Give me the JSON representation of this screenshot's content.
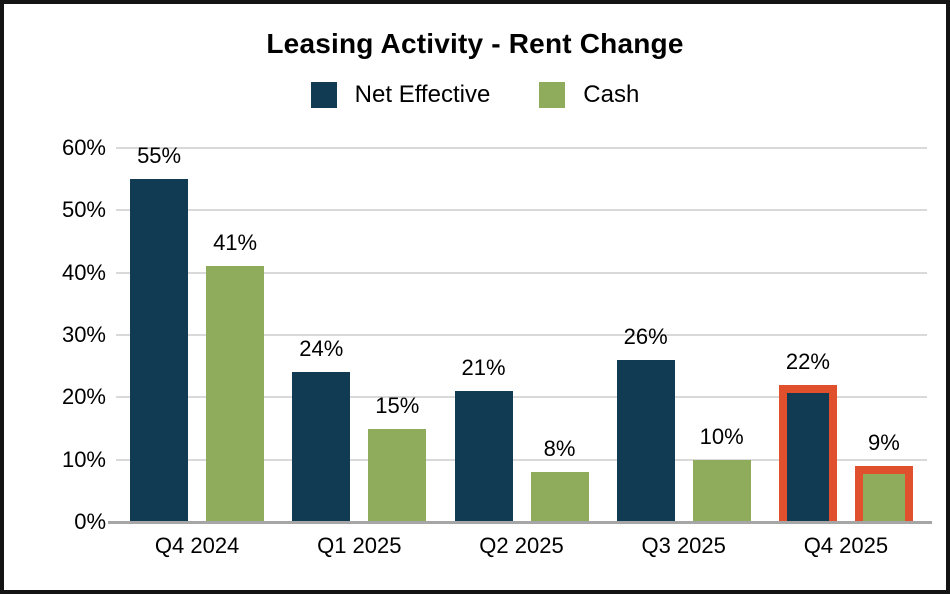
{
  "chart_data": {
    "type": "bar",
    "title": "Leasing Activity - Rent Change",
    "categories": [
      "Q4 2024",
      "Q1 2025",
      "Q2 2025",
      "Q3 2025",
      "Q4 2025"
    ],
    "series": [
      {
        "name": "Net Effective",
        "color": "#113a53",
        "values": [
          55,
          24,
          21,
          26,
          22
        ]
      },
      {
        "name": "Cash",
        "color": "#8eac5c",
        "values": [
          41,
          15,
          8,
          10,
          9
        ]
      }
    ],
    "data_label_suffix": "%",
    "y_ticks": [
      "0%",
      "10%",
      "20%",
      "30%",
      "40%",
      "50%",
      "60%"
    ],
    "y_tick_values": [
      0,
      10,
      20,
      30,
      40,
      50,
      60
    ],
    "ylim": [
      0,
      60
    ],
    "grid": true,
    "legend_position": "top-center",
    "highlight": {
      "category": "Q4 2025",
      "category_index": 4,
      "color": "#e0502d"
    },
    "colors": {
      "gridline": "#d9d9d9",
      "axis_line": "#a6a6a6",
      "text": "#000000",
      "background": "#ffffff",
      "frame_border": "#141414"
    }
  }
}
